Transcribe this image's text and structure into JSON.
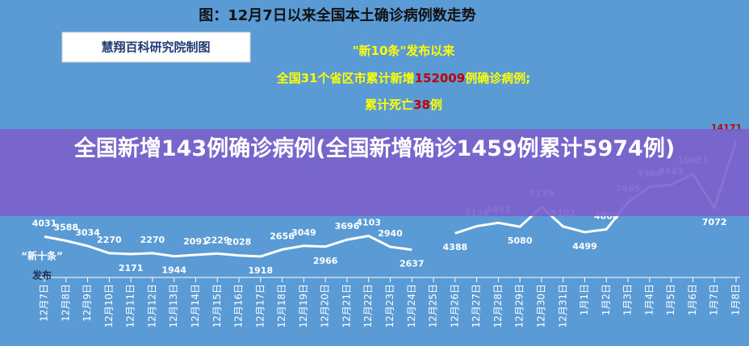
{
  "headline": "全国新增143例确诊病例(全国新增确诊1459例累计5974例)",
  "chart_data": {
    "type": "line",
    "title": "图：12月7日以来全国本土确诊病例数走势",
    "source": "慧翔百科研究院制图",
    "notes": [
      [
        "\"新10条\"发布以来"
      ],
      [
        "全国31个省区市累计新增",
        "152009",
        "例确诊病例;"
      ],
      [
        "累计死亡",
        "38",
        "例"
      ]
    ],
    "marker_note": [
      "“新十条”",
      "发布"
    ],
    "categories": [
      "12月7日",
      "12月8日",
      "12月9日",
      "12月10日",
      "12月11日",
      "12月12日",
      "12月13日",
      "12月14日",
      "12月15日",
      "12月16日",
      "12月17日",
      "12月18日",
      "12月19日",
      "12月20日",
      "12月21日",
      "12月22日",
      "12月23日",
      "12月24日",
      "12月25日",
      "12月26日",
      "12月27日",
      "12月28日",
      "12月29日",
      "12月30日",
      "12月31日",
      "1月1日",
      "1月2日",
      "1月3日",
      "1月4日",
      "1月5日",
      "1月6日",
      "1月7日",
      "1月8日"
    ],
    "series": [
      {
        "name": "本土确诊",
        "color": "#ffffff",
        "values": [
          4031,
          3588,
          3034,
          2270,
          2171,
          2270,
          1944,
          2091,
          2229,
          2028,
          1918,
          2656,
          3049,
          2966,
          3696,
          4103,
          2940,
          2637,
          null,
          4388,
          5136,
          5491,
          5080,
          7179,
          5102,
          4499,
          4804,
          7685,
          9308,
          9543,
          10681,
          7072,
          14171
        ]
      }
    ]
  }
}
